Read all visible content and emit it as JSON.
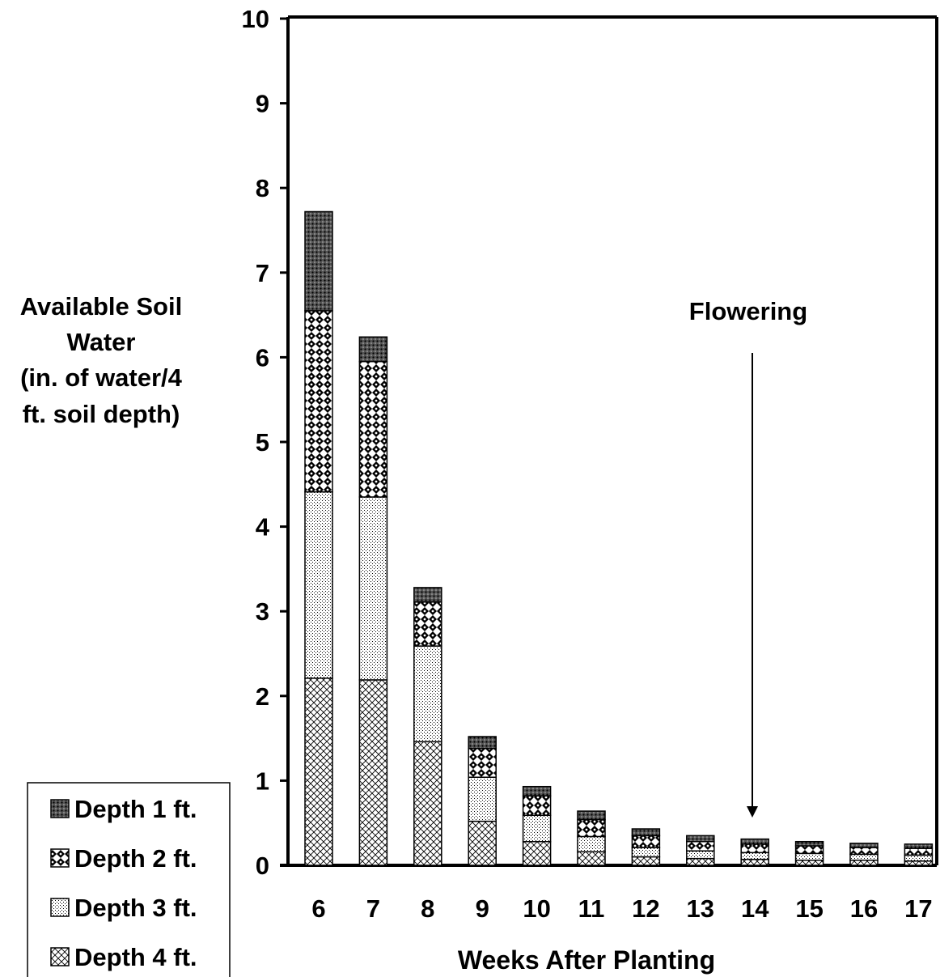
{
  "chart_data": {
    "type": "bar",
    "stacked": true,
    "ylabel_lines": [
      "Available Soil",
      "Water",
      "(in. of water/4",
      "ft. soil depth)"
    ],
    "xlabel": "Weeks After Planting",
    "ylim": [
      0,
      10
    ],
    "yticks": [
      0,
      1,
      2,
      3,
      4,
      5,
      6,
      7,
      8,
      9,
      10
    ],
    "categories": [
      "6",
      "7",
      "8",
      "9",
      "10",
      "11",
      "12",
      "13",
      "14",
      "15",
      "16",
      "17"
    ],
    "series": [
      {
        "name": "Depth 4 ft.",
        "pattern": "crosshatch-dense",
        "values": [
          2.21,
          2.19,
          1.46,
          0.52,
          0.28,
          0.16,
          0.1,
          0.08,
          0.07,
          0.06,
          0.06,
          0.05
        ]
      },
      {
        "name": "Depth 3 ft.",
        "pattern": "fine-dots",
        "values": [
          2.2,
          2.16,
          1.13,
          0.52,
          0.31,
          0.18,
          0.11,
          0.09,
          0.08,
          0.08,
          0.07,
          0.07
        ]
      },
      {
        "name": "Depth 2 ft.",
        "pattern": "diamond-checker",
        "values": [
          2.14,
          1.6,
          0.52,
          0.34,
          0.23,
          0.2,
          0.14,
          0.11,
          0.1,
          0.09,
          0.08,
          0.08
        ]
      },
      {
        "name": "Depth 1 ft.",
        "pattern": "dark-dots",
        "values": [
          1.17,
          0.29,
          0.17,
          0.14,
          0.11,
          0.1,
          0.08,
          0.07,
          0.06,
          0.05,
          0.05,
          0.05
        ]
      }
    ],
    "legend_order": [
      "Depth 1 ft.",
      "Depth 2 ft.",
      "Depth 3 ft.",
      "Depth 4 ft."
    ],
    "legend_position": "bottom-left",
    "annotation": {
      "text": "Flowering",
      "target_category": "14",
      "arrow": "down"
    },
    "grid": false
  }
}
